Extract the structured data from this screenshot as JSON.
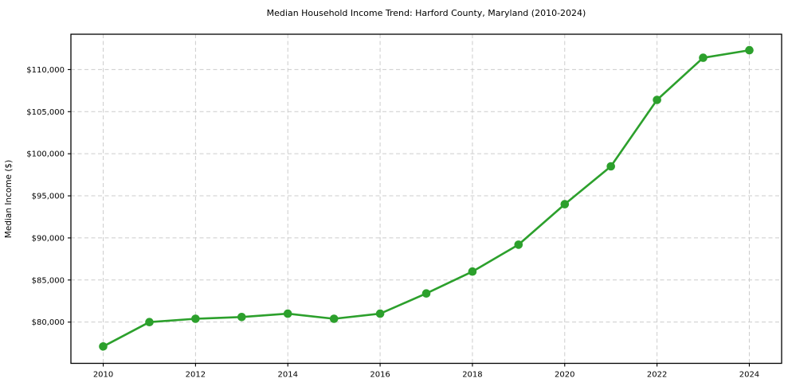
{
  "figure": {
    "background": "#ffffff"
  },
  "chart_data": {
    "type": "line",
    "title": "Median Household Income Trend: Harford County, Maryland (2010-2024)",
    "xlabel": "",
    "ylabel": "Median Income ($)",
    "series": [
      {
        "name": "Median Household Income",
        "x": [
          2010,
          2011,
          2012,
          2013,
          2014,
          2015,
          2016,
          2017,
          2018,
          2019,
          2020,
          2021,
          2022,
          2023,
          2024
        ],
        "values": [
          77100,
          80000,
          80400,
          80600,
          81000,
          80400,
          81000,
          83400,
          86000,
          89200,
          94000,
          98500,
          106400,
          111400,
          112300
        ],
        "line_color": "#2ca02c",
        "marker": "circle",
        "marker_size": 5.3,
        "line_width": 2.6
      }
    ],
    "xlim": [
      2009.3,
      2024.7
    ],
    "ylim": [
      75100,
      114200
    ],
    "x_ticks": [
      2010,
      2012,
      2014,
      2016,
      2018,
      2020,
      2022,
      2024
    ],
    "x_tick_labels": [
      "2010",
      "2012",
      "2014",
      "2016",
      "2018",
      "2020",
      "2022",
      "2024"
    ],
    "y_ticks": [
      80000,
      85000,
      90000,
      95000,
      100000,
      105000,
      110000
    ],
    "y_tick_labels": [
      "$80,000",
      "$85,000",
      "$90,000",
      "$95,000",
      "$100,000",
      "$105,000",
      "$110,000"
    ],
    "grid": true,
    "grid_style": "dashed",
    "grid_color": "#cccccc",
    "axis_color": "#000000",
    "legend": "none"
  }
}
